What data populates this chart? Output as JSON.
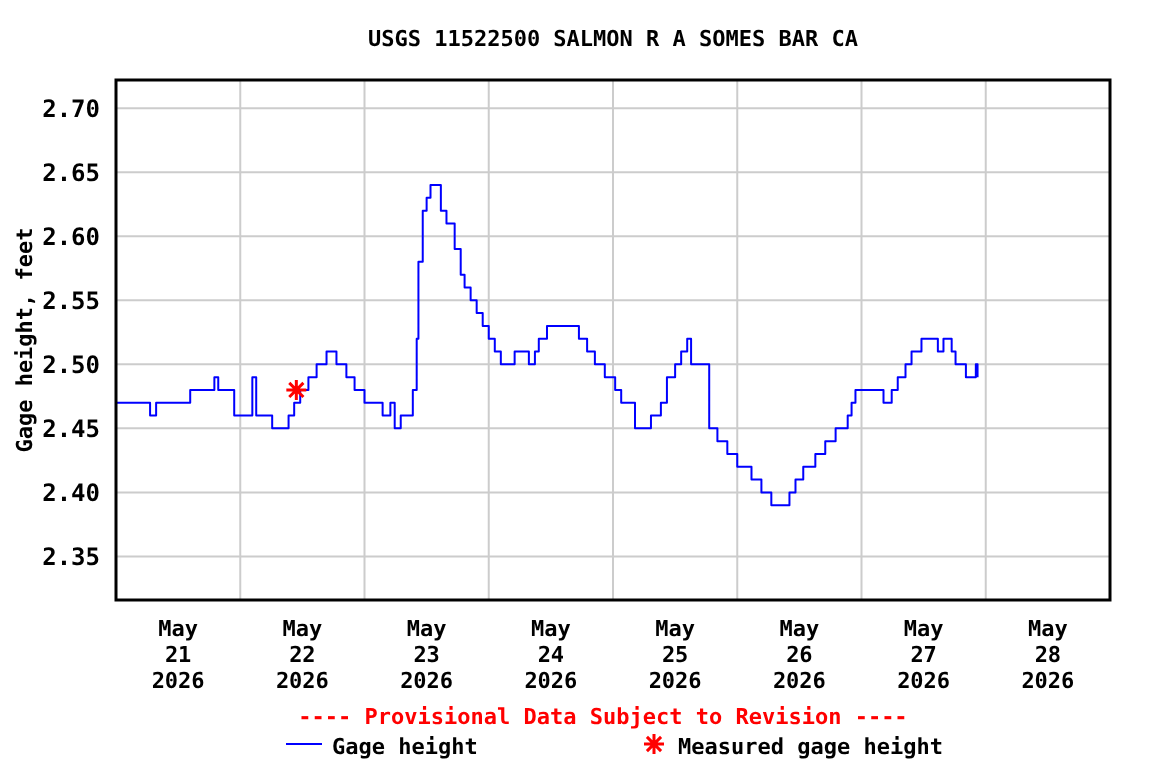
{
  "chart_data": {
    "type": "line",
    "title": "USGS 11522500 SALMON R A SOMES BAR CA",
    "ylabel": "Gage height, feet",
    "annotations": [
      "---- Provisional Data Subject to Revision ----"
    ],
    "xlim": [
      "2026-05-21T00:00",
      "2026-05-29T00:00"
    ],
    "xticks": [
      {
        "value": "2026-05-21T12:00",
        "label": "May\n21\n2026"
      },
      {
        "value": "2026-05-22T00:00",
        "label": null
      },
      {
        "value": "2026-05-22T12:00",
        "label": "May\n22\n2026"
      },
      {
        "value": "2026-05-23T00:00",
        "label": null
      },
      {
        "value": "2026-05-23T12:00",
        "label": "May\n23\n2026"
      },
      {
        "value": "2026-05-24T00:00",
        "label": null
      },
      {
        "value": "2026-05-24T12:00",
        "label": "May\n24\n2026"
      },
      {
        "value": "2026-05-25T00:00",
        "label": null
      },
      {
        "value": "2026-05-25T12:00",
        "label": "May\n25\n2026"
      },
      {
        "value": "2026-05-26T00:00",
        "label": null
      },
      {
        "value": "2026-05-26T12:00",
        "label": "May\n26\n2026"
      },
      {
        "value": "2026-05-27T00:00",
        "label": null
      },
      {
        "value": "2026-05-27T12:00",
        "label": "May\n27\n2026"
      },
      {
        "value": "2026-05-28T00:00",
        "label": null
      },
      {
        "value": "2026-05-28T12:00",
        "label": "May\n28\n2026"
      }
    ],
    "ylim": [
      2.316,
      2.722
    ],
    "yticks": [
      2.35,
      {
        "value": 2.4,
        "label": "2.40"
      },
      2.45,
      {
        "value": 2.5,
        "label": "2.50"
      },
      2.55,
      {
        "value": 2.6,
        "label": "2.60"
      },
      2.65,
      {
        "value": 2.7,
        "label": "2.70"
      }
    ],
    "grid": true,
    "legend": "bottom",
    "series": [
      {
        "name": "Gage height",
        "type": "step",
        "color": "#0000ff",
        "marker": "none",
        "x": [
          "2026-05-21T00:00",
          "2026-05-21T06:35",
          "2026-05-21T07:45",
          "2026-05-21T12:25",
          "2026-05-21T14:20",
          "2026-05-21T19:00",
          "2026-05-21T19:45",
          "2026-05-21T22:05",
          "2026-05-21T22:50",
          "2026-05-22T00:00",
          "2026-05-22T02:20",
          "2026-05-22T03:05",
          "2026-05-22T05:50",
          "2026-05-22T06:10",
          "2026-05-22T08:30",
          "2026-05-22T09:20",
          "2026-05-22T10:25",
          "2026-05-22T11:35",
          "2026-05-22T13:10",
          "2026-05-22T14:45",
          "2026-05-22T16:40",
          "2026-05-22T18:10",
          "2026-05-22T18:35",
          "2026-05-22T20:10",
          "2026-05-22T20:30",
          "2026-05-22T22:05",
          "2026-05-23T00:00",
          "2026-05-23T03:05",
          "2026-05-23T03:30",
          "2026-05-23T05:00",
          "2026-05-23T05:50",
          "2026-05-23T07:00",
          "2026-05-23T08:30",
          "2026-05-23T09:20",
          "2026-05-23T10:05",
          "2026-05-23T10:25",
          "2026-05-23T11:15",
          "2026-05-23T12:00",
          "2026-05-23T12:45",
          "2026-05-23T13:55",
          "2026-05-23T14:45",
          "2026-05-23T15:50",
          "2026-05-23T16:40",
          "2026-05-23T17:25",
          "2026-05-23T18:35",
          "2026-05-23T19:20",
          "2026-05-23T20:30",
          "2026-05-23T21:40",
          "2026-05-23T22:50",
          "2026-05-24T00:00",
          "2026-05-24T01:10",
          "2026-05-24T02:20",
          "2026-05-24T04:15",
          "2026-05-24T05:00",
          "2026-05-24T07:00",
          "2026-05-24T07:45",
          "2026-05-24T08:55",
          "2026-05-24T09:40",
          "2026-05-24T11:15",
          "2026-05-24T16:40",
          "2026-05-24T17:25",
          "2026-05-24T19:00",
          "2026-05-24T20:30",
          "2026-05-24T22:25",
          "2026-05-25T00:25",
          "2026-05-25T01:35",
          "2026-05-25T03:30",
          "2026-05-25T04:15",
          "2026-05-25T07:20",
          "2026-05-25T08:10",
          "2026-05-25T09:15",
          "2026-05-25T10:25",
          "2026-05-25T12:00",
          "2026-05-25T13:10",
          "2026-05-25T14:20",
          "2026-05-25T15:05",
          "2026-05-25T17:50",
          "2026-05-25T18:35",
          "2026-05-25T20:10",
          "2026-05-25T22:05",
          "2026-05-26T00:00",
          "2026-05-26T02:45",
          "2026-05-26T04:40",
          "2026-05-26T06:35",
          "2026-05-26T09:20",
          "2026-05-26T10:05",
          "2026-05-26T11:15",
          "2026-05-26T12:45",
          "2026-05-26T15:05",
          "2026-05-26T17:00",
          "2026-05-26T19:00",
          "2026-05-26T21:20",
          "2026-05-26T22:05",
          "2026-05-26T22:50",
          "2026-05-27T03:05",
          "2026-05-27T04:15",
          "2026-05-27T05:50",
          "2026-05-27T07:00",
          "2026-05-27T08:30",
          "2026-05-27T09:40",
          "2026-05-27T11:35",
          "2026-05-27T14:45",
          "2026-05-27T15:50",
          "2026-05-27T17:25",
          "2026-05-27T18:10",
          "2026-05-27T20:10",
          "2026-05-27T22:05",
          "2026-05-27T22:25"
        ],
        "values": [
          2.47,
          2.46,
          2.47,
          2.47,
          2.48,
          2.49,
          2.48,
          2.48,
          2.46,
          2.46,
          2.49,
          2.46,
          2.46,
          2.45,
          2.45,
          2.46,
          2.47,
          2.48,
          2.49,
          2.5,
          2.51,
          2.51,
          2.5,
          2.5,
          2.49,
          2.48,
          2.47,
          2.47,
          2.46,
          2.47,
          2.45,
          2.46,
          2.46,
          2.48,
          2.52,
          2.58,
          2.62,
          2.63,
          2.64,
          2.64,
          2.62,
          2.61,
          2.61,
          2.59,
          2.57,
          2.56,
          2.55,
          2.54,
          2.53,
          2.52,
          2.51,
          2.5,
          2.5,
          2.51,
          2.51,
          2.5,
          2.51,
          2.52,
          2.53,
          2.53,
          2.52,
          2.51,
          2.5,
          2.49,
          2.48,
          2.47,
          2.47,
          2.45,
          2.46,
          2.46,
          2.47,
          2.49,
          2.5,
          2.51,
          2.52,
          2.5,
          2.5,
          2.45,
          2.44,
          2.43,
          2.42,
          2.41,
          2.4,
          2.39,
          2.39,
          2.4,
          2.41,
          2.42,
          2.43,
          2.44,
          2.45,
          2.46,
          2.47,
          2.48,
          2.48,
          2.47,
          2.48,
          2.49,
          2.5,
          2.51,
          2.52,
          2.51,
          2.52,
          2.51,
          2.5,
          2.49,
          2.5,
          2.49
        ]
      },
      {
        "name": "Measured gage height",
        "type": "scatter",
        "color": "#ff0000",
        "marker": "cross",
        "x": [
          "2026-05-22T10:50"
        ],
        "values": [
          2.48
        ]
      }
    ]
  }
}
